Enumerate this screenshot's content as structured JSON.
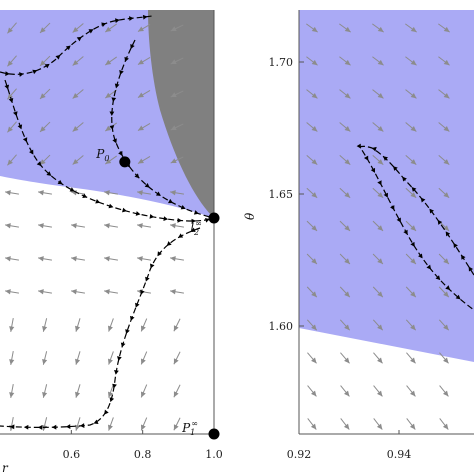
{
  "chart_data": [
    {
      "type": "scatter",
      "panel": "left",
      "xlabel": "r",
      "ylabel": "",
      "xlim": [
        0.4,
        1.0
      ],
      "x_ticks": [
        "0.6",
        "0.8",
        "1.0"
      ],
      "y_ticks": [],
      "points": [
        {
          "label": "P",
          "sub": "0",
          "sup": "",
          "x": 0.75,
          "y": 0.63
        },
        {
          "label": "l",
          "sub": "2",
          "sup": "∞",
          "x": 1.0,
          "y": 0.5
        },
        {
          "label": "P",
          "sub": "1",
          "sup": "∞",
          "x": 1.0,
          "y": 0.0
        }
      ],
      "regions": {
        "shaded_color": "#aaaaf5",
        "forbidden_color": "#808080"
      },
      "stream_color": "#000000",
      "vector_color": "#8c8c8c"
    },
    {
      "type": "scatter",
      "panel": "right",
      "xlabel": "",
      "ylabel": "θ",
      "xlim": [
        0.915,
        0.96
      ],
      "ylim": [
        1.57,
        1.73
      ],
      "x_ticks": [
        "0.92",
        "0.94"
      ],
      "y_ticks": [
        "1.60",
        "1.65",
        "1.70"
      ],
      "regions": {
        "shaded_color": "#aaaaf5"
      },
      "stream_color": "#000000",
      "vector_color": "#8c8c8c"
    }
  ]
}
